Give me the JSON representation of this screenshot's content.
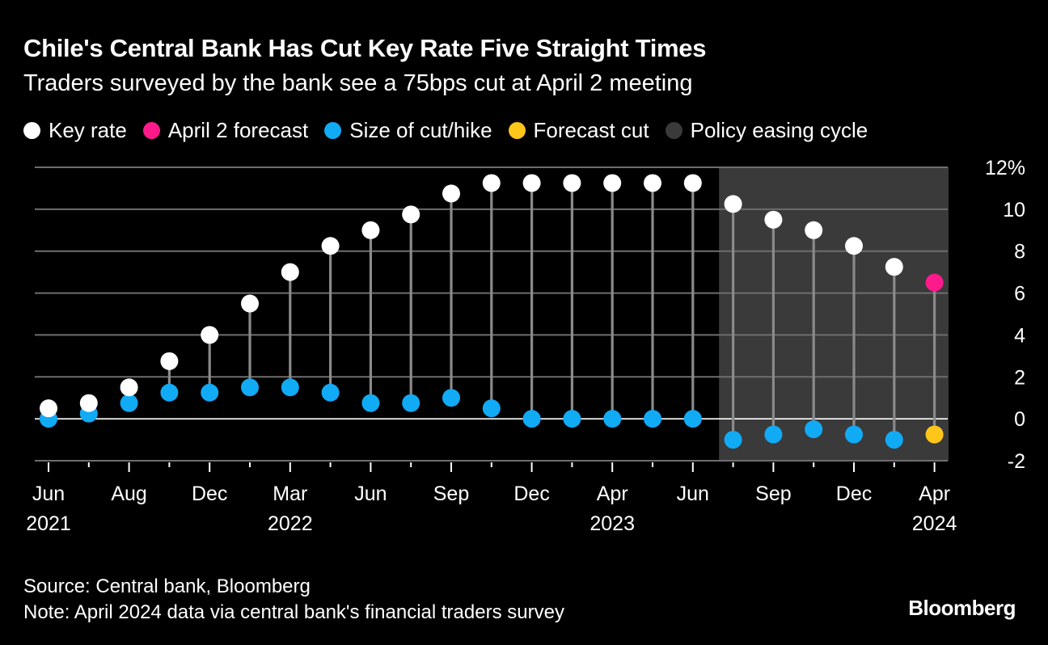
{
  "title": "Chile's Central Bank Has Cut Key Rate Five Straight Times",
  "subtitle": "Traders surveyed by the bank see a 75bps cut at April 2 meeting",
  "legend": [
    {
      "label": "Key rate",
      "color": "#ffffff"
    },
    {
      "label": "April 2 forecast",
      "color": "#ff1a8c"
    },
    {
      "label": "Size of cut/hike",
      "color": "#11aaf5"
    },
    {
      "label": "Forecast cut",
      "color": "#ffc61a"
    },
    {
      "label": "Policy easing cycle",
      "color": "#3a3a3a"
    }
  ],
  "footer": {
    "source": "Source: Central bank, Bloomberg",
    "note": "Note: April 2024 data via central bank's financial traders survey"
  },
  "brand": "Bloomberg",
  "chart_data": {
    "type": "scatter",
    "ylim": [
      -2,
      12
    ],
    "y_ticks": [
      "12%",
      "10",
      "8",
      "6",
      "4",
      "2",
      "0",
      "-2"
    ],
    "y_tick_values": [
      12,
      10,
      8,
      6,
      4,
      2,
      0,
      -2
    ],
    "grid": true,
    "legend_position": "top",
    "x_tick_labels": [
      {
        "index": 0,
        "month": "Jun",
        "year": "2021"
      },
      {
        "index": 2,
        "month": "Aug",
        "year": ""
      },
      {
        "index": 4,
        "month": "Dec",
        "year": ""
      },
      {
        "index": 6,
        "month": "Mar",
        "year": "2022"
      },
      {
        "index": 8,
        "month": "Jun",
        "year": ""
      },
      {
        "index": 10,
        "month": "Sep",
        "year": ""
      },
      {
        "index": 12,
        "month": "Dec",
        "year": ""
      },
      {
        "index": 14,
        "month": "Apr",
        "year": "2023"
      },
      {
        "index": 16,
        "month": "Jun",
        "year": ""
      },
      {
        "index": 18,
        "month": "Sep",
        "year": ""
      },
      {
        "index": 20,
        "month": "Dec",
        "year": ""
      },
      {
        "index": 22,
        "month": "Apr",
        "year": "2024"
      }
    ],
    "x_minor_tick_indices": [
      1,
      3,
      5,
      7,
      9,
      11,
      13,
      15,
      17,
      19,
      21
    ],
    "easing_cycle_range": [
      16.65,
      22.35
    ],
    "series": [
      {
        "name": "Key rate",
        "color": "#ffffff",
        "values": [
          0.5,
          0.75,
          1.5,
          2.75,
          4.0,
          5.5,
          7.0,
          8.25,
          9.0,
          9.75,
          10.75,
          11.25,
          11.25,
          11.25,
          11.25,
          11.25,
          11.25,
          10.25,
          9.5,
          9.0,
          8.25,
          7.25,
          null
        ]
      },
      {
        "name": "April 2 forecast",
        "color": "#ff1a8c",
        "values": [
          null,
          null,
          null,
          null,
          null,
          null,
          null,
          null,
          null,
          null,
          null,
          null,
          null,
          null,
          null,
          null,
          null,
          null,
          null,
          null,
          null,
          null,
          6.5
        ]
      },
      {
        "name": "Size of cut/hike",
        "color": "#11aaf5",
        "values": [
          0.0,
          0.25,
          0.75,
          1.25,
          1.25,
          1.5,
          1.5,
          1.25,
          0.75,
          0.75,
          1.0,
          0.5,
          0.0,
          0.0,
          0.0,
          0.0,
          0.0,
          -1.0,
          -0.75,
          -0.5,
          -0.75,
          -1.0,
          null
        ]
      },
      {
        "name": "Forecast cut",
        "color": "#ffc61a",
        "values": [
          null,
          null,
          null,
          null,
          null,
          null,
          null,
          null,
          null,
          null,
          null,
          null,
          null,
          null,
          null,
          null,
          null,
          null,
          null,
          null,
          null,
          null,
          -0.75
        ]
      }
    ]
  }
}
